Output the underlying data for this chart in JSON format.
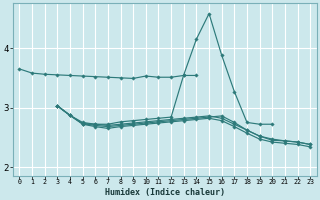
{
  "xlabel": "Humidex (Indice chaleur)",
  "bg_color": "#cce8ec",
  "grid_color": "#ffffff",
  "line_color": "#2d7a7a",
  "xlim": [
    -0.5,
    23.5
  ],
  "ylim": [
    1.85,
    4.75
  ],
  "xticks": [
    0,
    1,
    2,
    3,
    4,
    5,
    6,
    7,
    8,
    9,
    10,
    11,
    12,
    13,
    14,
    15,
    16,
    17,
    18,
    19,
    20,
    21,
    22,
    23
  ],
  "yticks": [
    2,
    3,
    4
  ],
  "series": [
    {
      "x": [
        0,
        1,
        2,
        3,
        4,
        5,
        6,
        7,
        8,
        9,
        10,
        11,
        12,
        13,
        14
      ],
      "y": [
        3.65,
        3.58,
        3.56,
        3.55,
        3.54,
        3.53,
        3.52,
        3.51,
        3.5,
        3.49,
        3.53,
        3.51,
        3.51,
        3.54,
        3.54
      ]
    },
    {
      "x": [
        3,
        4,
        5,
        6,
        7,
        8,
        9,
        10,
        11,
        12,
        13,
        14,
        15,
        16,
        17,
        18,
        19,
        20
      ],
      "y": [
        3.03,
        2.87,
        2.73,
        2.72,
        2.72,
        2.76,
        2.78,
        2.8,
        2.82,
        2.84,
        3.55,
        4.15,
        4.58,
        3.88,
        3.27,
        2.75,
        2.72,
        2.72
      ]
    },
    {
      "x": [
        3,
        4,
        5,
        6,
        7,
        8,
        9,
        10,
        11,
        12,
        13,
        14,
        15,
        16,
        17,
        18,
        19,
        20,
        21,
        22,
        23
      ],
      "y": [
        3.03,
        2.87,
        2.73,
        2.7,
        2.68,
        2.7,
        2.72,
        2.74,
        2.76,
        2.78,
        2.8,
        2.82,
        2.84,
        2.86,
        2.75,
        2.62,
        2.52,
        2.45,
        2.44,
        2.42,
        2.38
      ]
    },
    {
      "x": [
        3,
        4,
        5,
        6,
        7,
        8,
        9,
        10,
        11,
        12,
        13,
        14,
        15,
        16,
        17,
        18,
        19,
        20,
        21,
        22,
        23
      ],
      "y": [
        3.03,
        2.87,
        2.72,
        2.68,
        2.65,
        2.68,
        2.7,
        2.72,
        2.74,
        2.76,
        2.78,
        2.8,
        2.82,
        2.78,
        2.68,
        2.57,
        2.47,
        2.42,
        2.4,
        2.38,
        2.34
      ]
    },
    {
      "x": [
        3,
        4,
        5,
        6,
        7,
        8,
        9,
        10,
        11,
        12,
        13,
        14,
        15,
        16,
        17,
        18,
        19,
        20,
        21,
        22,
        23
      ],
      "y": [
        3.03,
        2.87,
        2.75,
        2.72,
        2.7,
        2.72,
        2.74,
        2.76,
        2.78,
        2.8,
        2.82,
        2.84,
        2.86,
        2.82,
        2.72,
        2.62,
        2.52,
        2.47,
        2.44,
        2.42,
        2.38
      ]
    }
  ]
}
